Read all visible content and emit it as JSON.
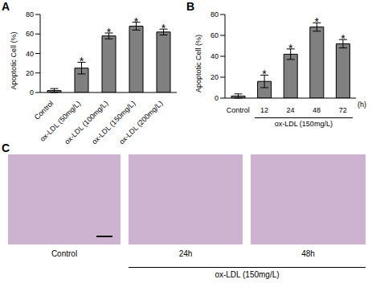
{
  "chart_data": [
    {
      "panel": "A",
      "type": "bar",
      "y_label": "Apoptotic Cell (%)",
      "categories": [
        "Control",
        "ox-LDL (50mg/L)",
        "ox-LDL (100mg/L)",
        "ox-LDL (150mg/L)",
        "ox-LDL (200mg/L)"
      ],
      "values": [
        2,
        25,
        58,
        68,
        62
      ],
      "errors": [
        2,
        6,
        3,
        4,
        3
      ],
      "significance": [
        null,
        "*",
        "*",
        "*",
        "*"
      ],
      "color": "#808080",
      "ylim": [
        0,
        80
      ],
      "yticks": [
        0,
        20,
        40,
        60,
        80
      ]
    },
    {
      "panel": "B",
      "type": "bar",
      "y_label": "Apoptotic Cell (%)",
      "x_label": "(h)",
      "group_label": "ox-LDL (150mg/L)",
      "categories": [
        "Control",
        "12",
        "24",
        "48",
        "72"
      ],
      "values": [
        2,
        16,
        42,
        68,
        52
      ],
      "errors": [
        2,
        6,
        5,
        4,
        4
      ],
      "significance": [
        null,
        "*",
        "*",
        "*",
        "*"
      ],
      "color": "#808080",
      "ylim": [
        0,
        80
      ],
      "yticks": [
        0,
        20,
        40,
        60,
        80
      ]
    }
  ],
  "panel_c": {
    "panel": "C",
    "images": [
      "Control",
      "24h",
      "48h"
    ],
    "group_label": "ox-LDL (150mg/L)"
  }
}
